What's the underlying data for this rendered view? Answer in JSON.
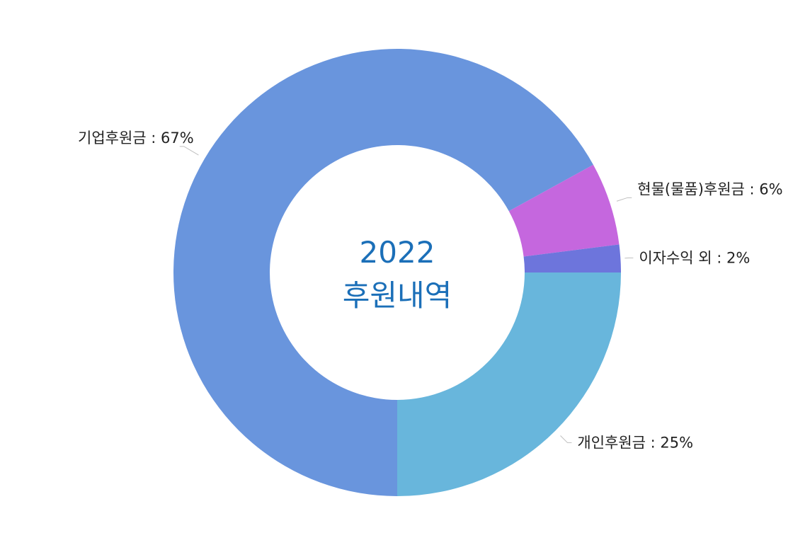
{
  "chart_data": {
    "type": "pie",
    "donut": true,
    "center_title": [
      "2022",
      "후원내역"
    ],
    "center_color": "#1b6fb8",
    "start": "3 o'clock",
    "direction": "clockwise",
    "slices": [
      {
        "label": "개인후원금 : 25%",
        "value": 25,
        "color": "#68b6dc"
      },
      {
        "label": "기업후원금 : 67%",
        "value": 67,
        "color": "#6995dd"
      },
      {
        "label": "현물(물품)후원금 : 6%",
        "value": 6,
        "color": "#c567de"
      },
      {
        "label": "이자수익 외 : 2%",
        "value": 2,
        "color": "#6d75dc"
      }
    ]
  }
}
